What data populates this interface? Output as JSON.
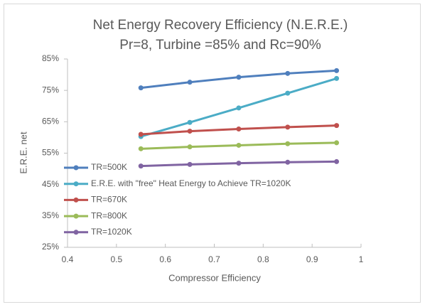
{
  "chart_data": {
    "type": "line",
    "title": "Net Energy Recovery Efficiency (N.E.R.E.)",
    "subtitle": "Pr=8, Turbine =85% and Rc=90%",
    "x_label": "Compressor Efficiency",
    "y_label": "E.R.E. net",
    "x": [
      0.55,
      0.65,
      0.75,
      0.85,
      0.95
    ],
    "series": [
      {
        "name": "TR=500K",
        "color": "#4f7fbd",
        "values": [
          75.8,
          77.6,
          79.2,
          80.4,
          81.3
        ]
      },
      {
        "name": "E.R.E. with \"free\" Heat Energy to Achieve TR=1020K",
        "color": "#4bacc6",
        "values": [
          60.3,
          64.8,
          69.4,
          74.1,
          78.8
        ]
      },
      {
        "name": "TR=670K",
        "color": "#c0504d",
        "values": [
          61.0,
          62.0,
          62.7,
          63.3,
          63.8
        ]
      },
      {
        "name": "TR=800K",
        "color": "#9bbb59",
        "values": [
          56.4,
          57.0,
          57.5,
          58.0,
          58.3
        ]
      },
      {
        "name": "TR=1020K",
        "color": "#8064a2",
        "values": [
          50.9,
          51.4,
          51.8,
          52.1,
          52.3
        ]
      }
    ],
    "xlim": [
      0.4,
      1
    ],
    "xticks": [
      0.4,
      0.5,
      0.6,
      0.7,
      0.8,
      0.9,
      1
    ],
    "ylim": [
      25,
      85
    ],
    "yticks": [
      {
        "value": 25,
        "label": "25%"
      },
      {
        "value": 35,
        "label": "35%"
      },
      {
        "value": 45,
        "label": "45%"
      },
      {
        "value": 55,
        "label": "55%"
      },
      {
        "value": 65,
        "label": "65%"
      },
      {
        "value": 75,
        "label": "75%"
      },
      {
        "value": 85,
        "label": "85%"
      }
    ],
    "grid": false,
    "legend": "left"
  }
}
